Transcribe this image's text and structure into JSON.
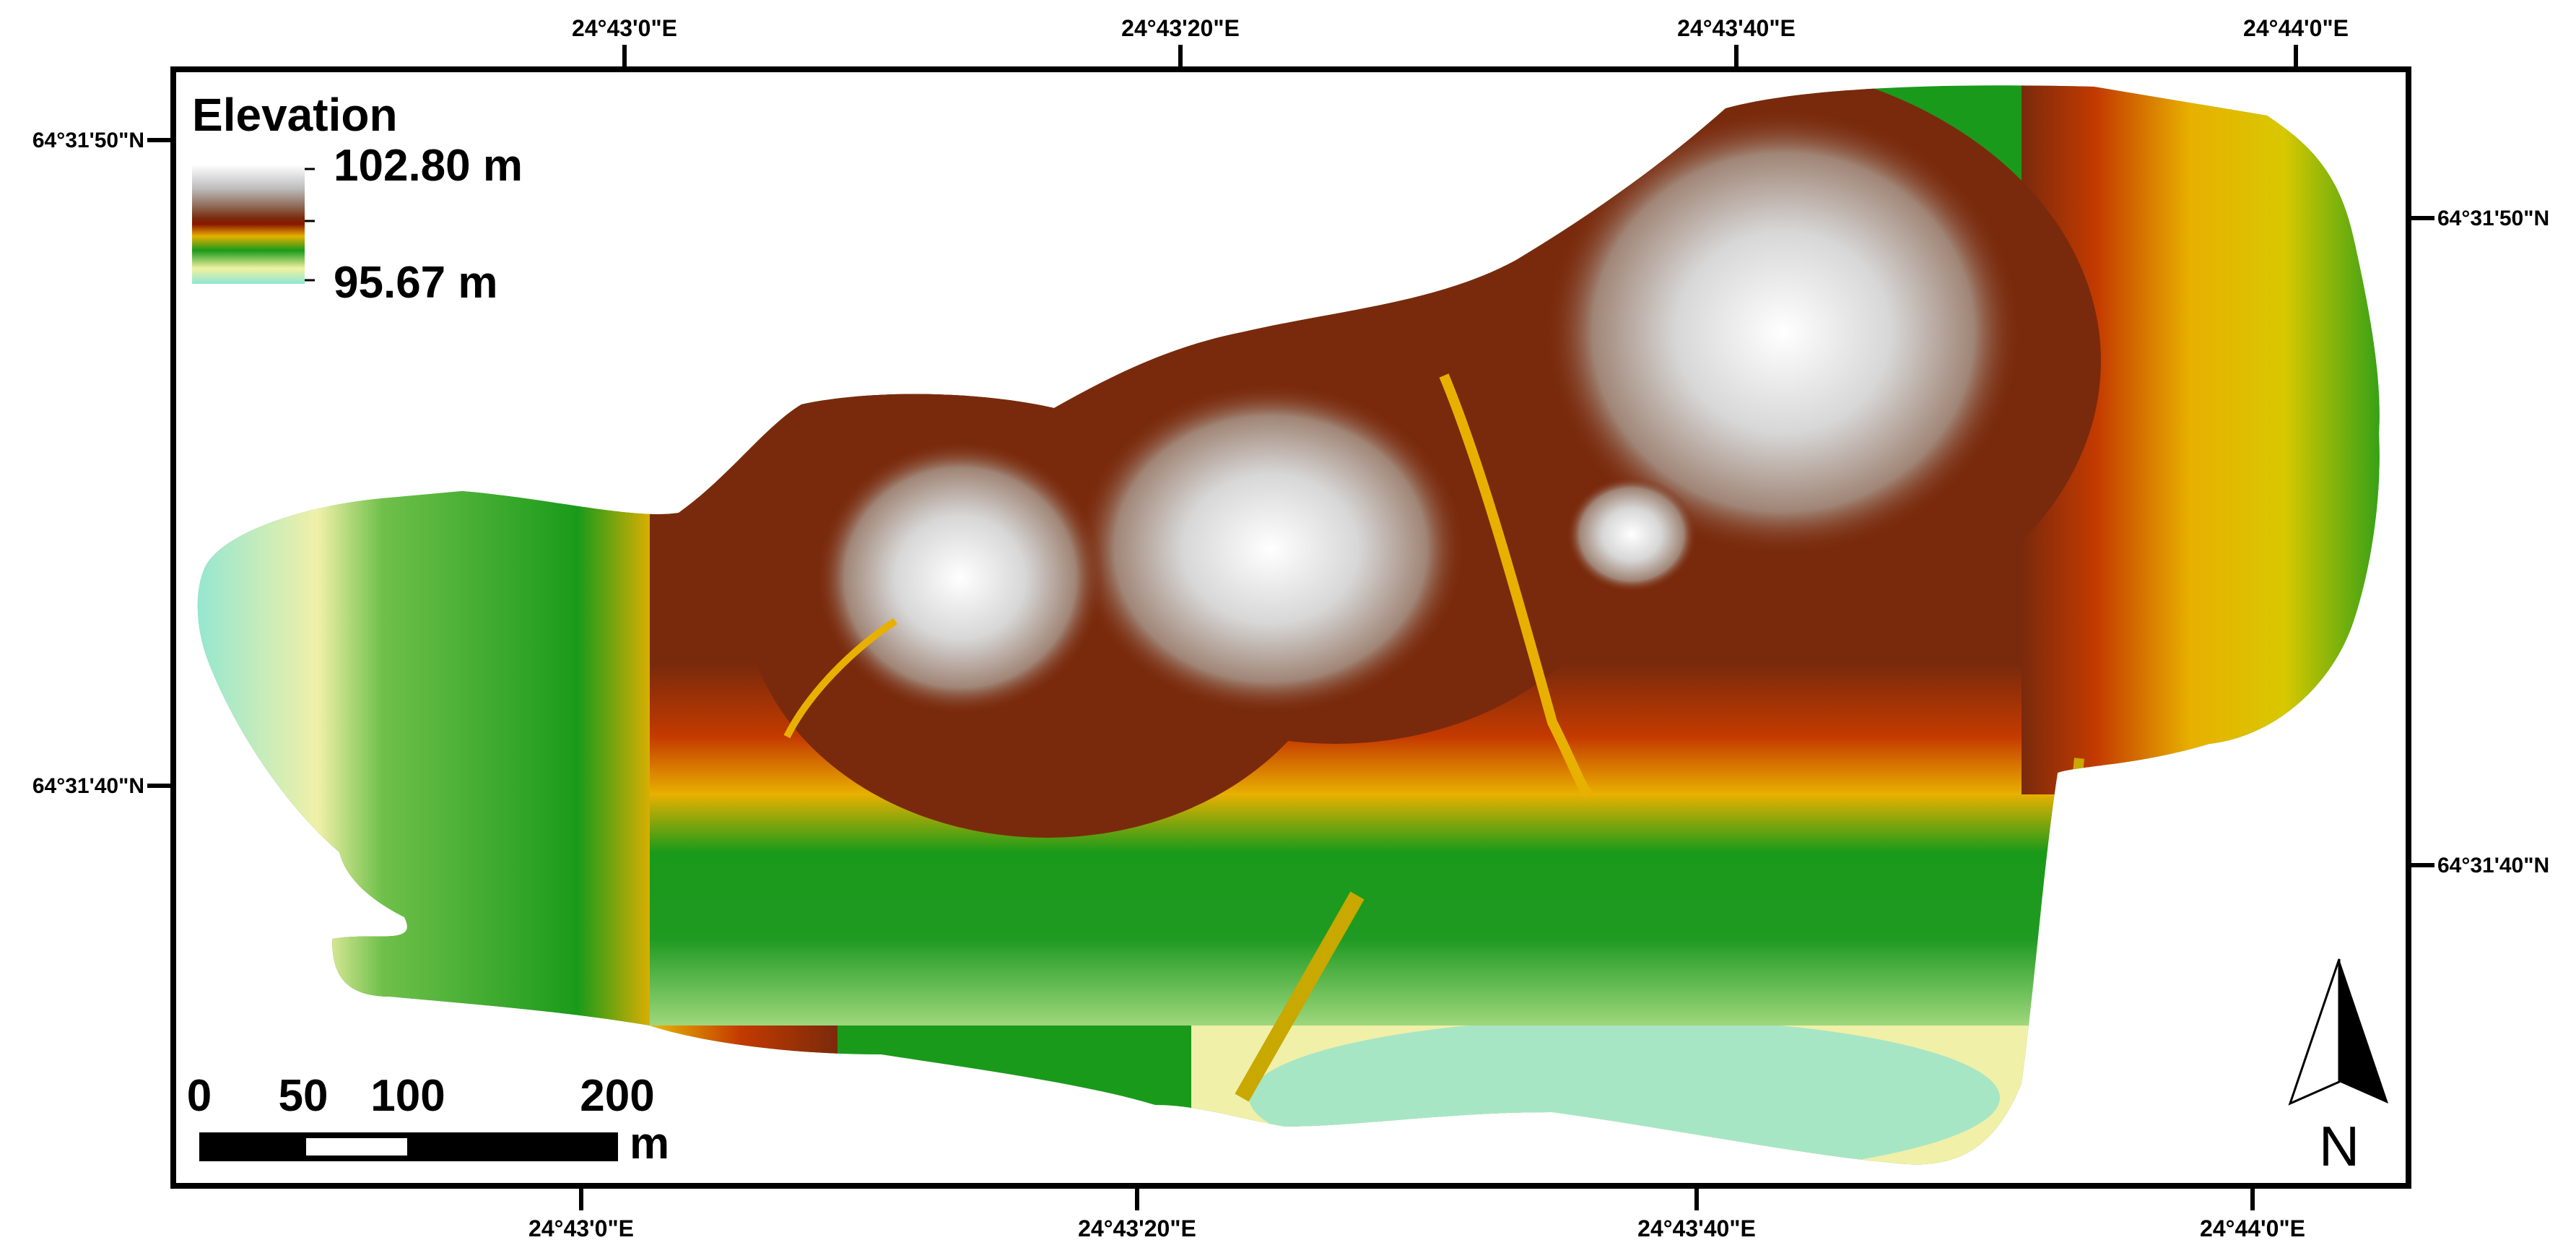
{
  "map": {
    "legend": {
      "title": "Elevation",
      "max_label": "102.80 m",
      "min_label": "95.67 m",
      "ramp_colors": [
        "#ffffff",
        "#bdbdbd",
        "#8f6a57",
        "#7a2a0c",
        "#8a1800",
        "#e8b000",
        "#1a9a1a",
        "#f2f2a0",
        "#8ee6d4"
      ]
    },
    "top_lon_labels": [
      "24°43'0\"E",
      "24°43'20\"E",
      "24°43'40\"E",
      "24°44'0\"E"
    ],
    "bottom_lon_labels": [
      "24°43'0\"E",
      "24°43'20\"E",
      "24°43'40\"E",
      "24°44'0\"E"
    ],
    "left_lat_labels": [
      "64°31'50\"N",
      "64°31'40\"N"
    ],
    "right_lat_labels": [
      "64°31'50\"N",
      "64°31'40\"N"
    ],
    "scale_bar": {
      "labels": [
        "0",
        "50",
        "100",
        "200"
      ],
      "unit": "m"
    },
    "north_arrow": {
      "label": "N"
    },
    "colors": {
      "frame": "#000000",
      "peak": "#ffffff",
      "brown": "#7a2a0c",
      "orange": "#e89a00",
      "yellow": "#e8d200",
      "green": "#1a9a1a",
      "pale": "#f0f0a8",
      "aqua": "#8ee6d4"
    }
  }
}
